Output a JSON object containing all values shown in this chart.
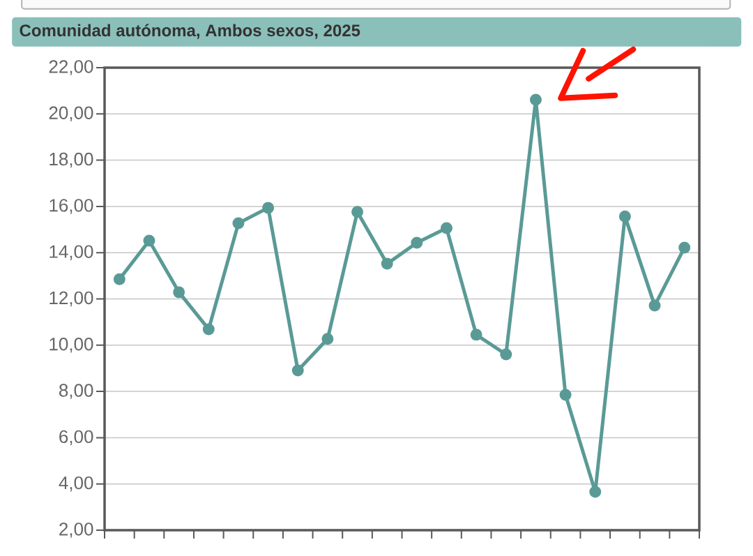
{
  "chart_data": {
    "type": "line",
    "title": "Comunidad autónoma, Ambos sexos, 2025",
    "categories": [
      null,
      null,
      null,
      null,
      null,
      null,
      null,
      null,
      null,
      null,
      null,
      null,
      null,
      null,
      null,
      null,
      null,
      null,
      null,
      null
    ],
    "series": [
      {
        "color": "#5a9a96",
        "values": [
          12.85,
          14.52,
          12.29,
          10.69,
          15.27,
          15.94,
          8.91,
          10.27,
          15.76,
          13.52,
          14.43,
          15.06,
          10.45,
          9.6,
          20.61,
          7.85,
          3.66,
          15.57,
          11.71,
          14.22
        ]
      }
    ],
    "ylim": [
      2,
      22
    ],
    "yticks": [
      {
        "value": 2,
        "label": "2,00"
      },
      {
        "value": 4,
        "label": "4,00"
      },
      {
        "value": 6,
        "label": "6,00"
      },
      {
        "value": 8,
        "label": "8,00"
      },
      {
        "value": 10,
        "label": "10,00"
      },
      {
        "value": 12,
        "label": "12,00"
      },
      {
        "value": 14,
        "label": "14,00"
      },
      {
        "value": 16,
        "label": "16,00"
      },
      {
        "value": 18,
        "label": "18,00"
      },
      {
        "value": 20,
        "label": "20,00"
      },
      {
        "value": 22,
        "label": "22,00"
      }
    ],
    "grid": "y",
    "marker": "circle",
    "line_style": "solid"
  }
}
